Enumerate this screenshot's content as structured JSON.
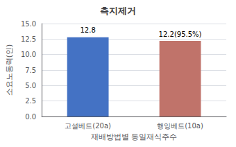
{
  "chart_data": {
    "type": "bar",
    "title": "측지제거",
    "categories": [
      "고설베드(20a)",
      "행잉베드(10a)"
    ],
    "values": [
      12.8,
      12.2
    ],
    "value_labels": [
      "12.8",
      "12.2(95.5%)"
    ],
    "data_labels": true,
    "colors": [
      "#4472C4",
      "#C0736A"
    ],
    "xlabel": "재배방법별 동일재식주수",
    "ylabel": "소요노동력(인)",
    "ylim": [
      0,
      15.0
    ],
    "yticks": [
      {
        "value": 0,
        "label": "0.0"
      },
      2.5,
      {
        "value": 5,
        "label": "5.0"
      },
      7.5,
      {
        "value": 10,
        "label": "10.0"
      },
      12.5,
      {
        "value": 15,
        "label": "15.0"
      }
    ],
    "grid": true
  }
}
